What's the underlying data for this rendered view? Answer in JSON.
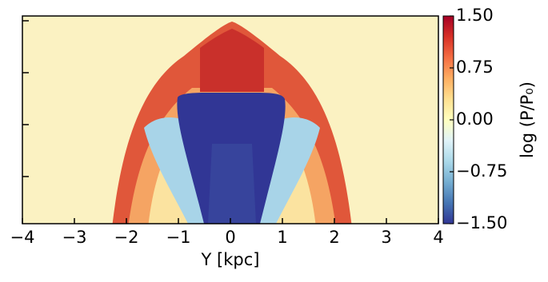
{
  "chart_data": {
    "type": "heatmap",
    "xlabel": "Y [kpc]",
    "xlim": [
      -4,
      4
    ],
    "xticks": [
      {
        "value": -4,
        "label": "−4"
      },
      {
        "value": -3,
        "label": "−3"
      },
      {
        "value": -2,
        "label": "−2"
      },
      {
        "value": -1,
        "label": "−1"
      },
      0,
      1,
      2,
      3,
      4
    ],
    "colorbar_label": "log (P/P₀)",
    "clim": [
      -1.5,
      1.5
    ],
    "colorbar_ticks": [
      {
        "value": 1.5,
        "label": "1.50"
      },
      {
        "value": 0.75,
        "label": "0.75"
      },
      {
        "value": 0,
        "label": "0.00"
      },
      {
        "value": -0.75,
        "label": "−0.75"
      },
      {
        "value": -1.5,
        "label": "−1.50"
      }
    ],
    "colormap": [
      "#313695",
      "#4575b4",
      "#74add1",
      "#abd9e9",
      "#e0f3f8",
      "#ffffbf",
      "#fee090",
      "#fdae61",
      "#f46d43",
      "#d73027",
      "#a50026"
    ]
  }
}
